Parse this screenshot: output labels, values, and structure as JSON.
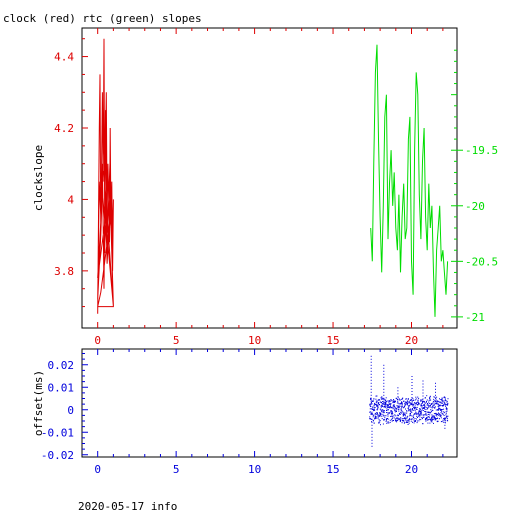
{
  "page": {
    "title": "clock (red) rtc (green) slopes",
    "footer": "2020-05-17 info"
  },
  "colors": {
    "clock": "#dd0000",
    "rtc": "#00dd00",
    "offset": "#0000dd",
    "axis": "#000000"
  },
  "chart_data": [
    {
      "type": "line",
      "ylabel": "clockslope",
      "xlim": [
        -1,
        22.9
      ],
      "ylim": [
        3.64,
        4.48
      ],
      "y2lim": [
        -21.1,
        -18.4
      ],
      "x_ticks": [
        0,
        5,
        10,
        15,
        20
      ],
      "x_tick_labels": [
        "0",
        "5",
        "10",
        "15",
        "20"
      ],
      "y_ticks": [
        3.8,
        4,
        4.2,
        4.4
      ],
      "y_tick_labels": [
        "3.8",
        "4",
        "4.2",
        "4.4"
      ],
      "y2_ticks": [
        -21,
        -20.5,
        -20,
        -19.5
      ],
      "y2_tick_labels": [
        "-21",
        "-20.5",
        "-20",
        "-19.5"
      ],
      "grid": false,
      "series": [
        {
          "name": "clock",
          "axis": "left",
          "x": [
            0.0,
            0.05,
            0.1,
            0.15,
            0.2,
            0.25,
            0.3,
            0.35,
            0.4,
            0.45,
            0.5,
            0.55,
            0.6,
            0.65,
            0.7,
            0.75,
            0.8,
            0.85,
            0.9,
            0.95,
            1.0,
            0.9,
            0.8,
            0.7,
            0.6,
            0.5,
            0.4,
            0.3,
            0.2,
            0.1,
            0.0,
            0.2,
            0.4,
            0.6,
            0.8,
            1.0,
            0.5,
            0.0,
            0.3,
            0.6,
            0.9,
            0.2,
            0.0,
            1.0,
            0.4
          ],
          "y": [
            3.68,
            3.95,
            4.2,
            4.35,
            3.9,
            4.1,
            4.3,
            4.05,
            4.45,
            3.85,
            4.15,
            4.3,
            3.95,
            4.1,
            4.0,
            3.88,
            4.2,
            3.92,
            4.05,
            3.8,
            4.0,
            3.85,
            4.12,
            4.0,
            3.9,
            4.25,
            3.75,
            4.1,
            3.95,
            4.05,
            3.72,
            3.9,
            4.18,
            3.82,
            4.0,
            3.7,
            3.95,
            3.78,
            4.02,
            3.86,
            3.98,
            3.74,
            3.7,
            3.7,
            4.08
          ]
        },
        {
          "name": "rtc",
          "axis": "right",
          "x": [
            17.4,
            17.5,
            17.6,
            17.7,
            17.8,
            17.9,
            18.0,
            18.1,
            18.2,
            18.3,
            18.4,
            18.5,
            18.6,
            18.7,
            18.8,
            18.9,
            19.0,
            19.1,
            19.2,
            19.3,
            19.4,
            19.5,
            19.6,
            19.7,
            19.8,
            19.9,
            20.0,
            20.1,
            20.2,
            20.3,
            20.4,
            20.5,
            20.6,
            20.7,
            20.8,
            20.9,
            21.0,
            21.1,
            21.2,
            21.3,
            21.4,
            21.5,
            21.6,
            21.7,
            21.8,
            21.9,
            22.0,
            22.1,
            22.2,
            22.3
          ],
          "y": [
            -20.2,
            -20.5,
            -19.6,
            -18.8,
            -18.55,
            -19.4,
            -20.1,
            -20.6,
            -20.0,
            -19.2,
            -19.0,
            -20.3,
            -19.8,
            -19.5,
            -20.0,
            -19.7,
            -20.2,
            -20.4,
            -19.9,
            -20.6,
            -20.1,
            -19.8,
            -20.3,
            -20.2,
            -19.4,
            -19.2,
            -20.5,
            -20.8,
            -19.5,
            -18.8,
            -19.0,
            -19.9,
            -20.3,
            -19.6,
            -19.3,
            -20.1,
            -20.4,
            -19.8,
            -20.2,
            -20.0,
            -20.6,
            -21.0,
            -20.4,
            -20.2,
            -20.0,
            -20.5,
            -20.4,
            -20.6,
            -20.8,
            -20.5
          ]
        }
      ]
    },
    {
      "type": "scatter",
      "ylabel": "offset(ms)",
      "xlim": [
        -1,
        22.9
      ],
      "ylim": [
        -0.021,
        0.027
      ],
      "x_ticks": [
        0,
        5,
        10,
        15,
        20
      ],
      "x_tick_labels": [
        "0",
        "5",
        "10",
        "15",
        "20"
      ],
      "y_ticks": [
        -0.02,
        -0.01,
        0,
        0.01,
        0.02
      ],
      "y_tick_labels": [
        "-0.02",
        "-0.01",
        "0",
        "0.01",
        "0.02"
      ],
      "grid": false,
      "series": [
        {
          "name": "offset",
          "x_range": [
            17.3,
            22.3
          ],
          "band": [
            -0.005,
            0.005
          ],
          "spikes": [
            {
              "x": 17.4,
              "y": 0.024
            },
            {
              "x": 17.45,
              "y": -0.016
            },
            {
              "x": 18.2,
              "y": 0.02
            },
            {
              "x": 19.1,
              "y": 0.01
            },
            {
              "x": 20.0,
              "y": 0.015
            },
            {
              "x": 20.7,
              "y": 0.013
            },
            {
              "x": 21.5,
              "y": 0.012
            },
            {
              "x": 22.1,
              "y": -0.008
            }
          ]
        }
      ]
    }
  ]
}
